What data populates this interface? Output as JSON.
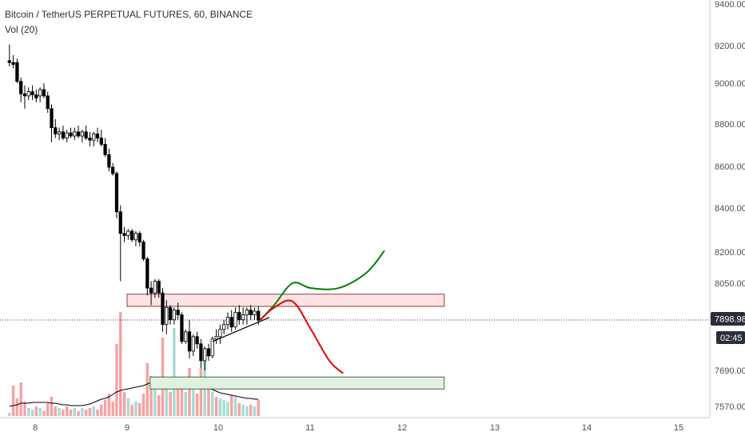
{
  "header": {
    "title": "Bitcoin / TetherUS PERPETUAL FUTURES, 60, BINANCE",
    "indicator": "Vol (20)"
  },
  "price_axis": {
    "ticks": [
      "9400.00",
      "9200.00",
      "9000.00",
      "8800.00",
      "8600.00",
      "8400.00",
      "8200.00",
      "8050.00",
      "7898.98",
      "7690.00",
      "7570.00"
    ],
    "tick_values": [
      9400,
      9200,
      9000,
      8800,
      8600,
      8400,
      8200,
      8050,
      7690,
      7570
    ],
    "current_price": "7898.98",
    "countdown": "02:45"
  },
  "time_axis": {
    "ticks": [
      "8",
      "9",
      "10",
      "11",
      "12",
      "13",
      "14",
      "15"
    ]
  },
  "colors": {
    "up": "#26a69a",
    "down": "#000000",
    "vol_up": "#a8dbd5",
    "vol_down": "#f4a3a3",
    "bullish_path": "#008000",
    "bearish_path": "#e00000",
    "resistance_zone": "#fde3e3",
    "support_zone": "#e1f1e1"
  },
  "chart_data": {
    "type": "candlestick",
    "x_unit": "day",
    "y_unit": "USDT",
    "ylim": [
      7500,
      9450
    ],
    "xlim": [
      7.72,
      15.3
    ],
    "candles": [
      [
        9120,
        9205,
        9090,
        9110
      ],
      [
        9110,
        9150,
        9080,
        9100
      ],
      [
        9110,
        9130,
        9000,
        9010
      ],
      [
        9010,
        9030,
        8910,
        8950
      ],
      [
        8950,
        8990,
        8880,
        8940
      ],
      [
        8940,
        8980,
        8920,
        8960
      ],
      [
        8960,
        8990,
        8920,
        8945
      ],
      [
        8945,
        8970,
        8910,
        8930
      ],
      [
        8940,
        8980,
        8910,
        8970
      ],
      [
        8970,
        9000,
        8930,
        8940
      ],
      [
        8940,
        8960,
        8860,
        8880
      ],
      [
        8880,
        8900,
        8720,
        8790
      ],
      [
        8790,
        8830,
        8740,
        8760
      ],
      [
        8760,
        8790,
        8730,
        8770
      ],
      [
        8770,
        8800,
        8730,
        8740
      ],
      [
        8740,
        8780,
        8720,
        8765
      ],
      [
        8765,
        8790,
        8740,
        8750
      ],
      [
        8750,
        8790,
        8730,
        8770
      ],
      [
        8770,
        8800,
        8740,
        8750
      ],
      [
        8750,
        8780,
        8720,
        8770
      ],
      [
        8770,
        8800,
        8730,
        8740
      ],
      [
        8740,
        8770,
        8700,
        8730
      ],
      [
        8730,
        8770,
        8700,
        8760
      ],
      [
        8760,
        8790,
        8720,
        8740
      ],
      [
        8740,
        8780,
        8700,
        8710
      ],
      [
        8710,
        8740,
        8650,
        8660
      ],
      [
        8660,
        8690,
        8580,
        8600
      ],
      [
        8600,
        8620,
        8560,
        8570
      ],
      [
        8570,
        8580,
        8360,
        8390
      ],
      [
        8390,
        8420,
        8060,
        8290
      ],
      [
        8290,
        8320,
        8250,
        8280
      ],
      [
        8280,
        8310,
        8260,
        8300
      ],
      [
        8300,
        8310,
        8250,
        8260
      ],
      [
        8260,
        8300,
        8230,
        8290
      ],
      [
        8290,
        8300,
        8230,
        8250
      ],
      [
        8250,
        8260,
        8160,
        8170
      ],
      [
        8170,
        8180,
        8000,
        8030
      ],
      [
        8030,
        8060,
        7960,
        8010
      ],
      [
        8010,
        8070,
        7990,
        8060
      ],
      [
        8060,
        8070,
        7990,
        8010
      ],
      [
        8010,
        8030,
        7850,
        7880
      ],
      [
        7880,
        7980,
        7840,
        7950
      ],
      [
        7950,
        7960,
        7880,
        7900
      ],
      [
        7900,
        7950,
        7880,
        7940
      ],
      [
        7940,
        7970,
        7900,
        7920
      ],
      [
        7920,
        7930,
        7800,
        7810
      ],
      [
        7810,
        7860,
        7800,
        7850
      ],
      [
        7850,
        7900,
        7740,
        7770
      ],
      [
        7770,
        7840,
        7750,
        7830
      ],
      [
        7830,
        7850,
        7780,
        7800
      ],
      [
        7800,
        7820,
        7700,
        7730
      ],
      [
        7730,
        7790,
        7690,
        7780
      ],
      [
        7780,
        7800,
        7730,
        7750
      ],
      [
        7750,
        7830,
        7740,
        7820
      ],
      [
        7820,
        7860,
        7800,
        7830
      ],
      [
        7830,
        7880,
        7800,
        7860
      ],
      [
        7860,
        7900,
        7840,
        7880
      ],
      [
        7880,
        7930,
        7860,
        7910
      ],
      [
        7910,
        7940,
        7850,
        7870
      ],
      [
        7870,
        7950,
        7860,
        7930
      ],
      [
        7930,
        7960,
        7880,
        7900
      ],
      [
        7900,
        7950,
        7880,
        7920
      ],
      [
        7920,
        7950,
        7880,
        7940
      ],
      [
        7940,
        7960,
        7900,
        7920
      ],
      [
        7920,
        7950,
        7900,
        7935
      ],
      [
        7935,
        7955,
        7880,
        7898
      ]
    ],
    "volume": [
      {
        "v": 4,
        "up": true
      },
      {
        "v": 38,
        "up": false
      },
      {
        "v": 22,
        "up": false
      },
      {
        "v": 42,
        "up": false
      },
      {
        "v": 18,
        "up": false
      },
      {
        "v": 10,
        "up": true
      },
      {
        "v": 8,
        "up": true
      },
      {
        "v": 12,
        "up": false
      },
      {
        "v": 10,
        "up": true
      },
      {
        "v": 6,
        "up": false
      },
      {
        "v": 16,
        "up": false
      },
      {
        "v": 24,
        "up": false
      },
      {
        "v": 12,
        "up": false
      },
      {
        "v": 10,
        "up": true
      },
      {
        "v": 8,
        "up": false
      },
      {
        "v": 12,
        "up": false
      },
      {
        "v": 8,
        "up": false
      },
      {
        "v": 10,
        "up": true
      },
      {
        "v": 6,
        "up": false
      },
      {
        "v": 10,
        "up": true
      },
      {
        "v": 8,
        "up": false
      },
      {
        "v": 10,
        "up": false
      },
      {
        "v": 12,
        "up": true
      },
      {
        "v": 8,
        "up": false
      },
      {
        "v": 14,
        "up": false
      },
      {
        "v": 20,
        "up": false
      },
      {
        "v": 28,
        "up": false
      },
      {
        "v": 18,
        "up": false
      },
      {
        "v": 90,
        "up": false
      },
      {
        "v": 130,
        "up": false
      },
      {
        "v": 30,
        "up": false
      },
      {
        "v": 22,
        "up": true
      },
      {
        "v": 14,
        "up": false
      },
      {
        "v": 18,
        "up": true
      },
      {
        "v": 16,
        "up": false
      },
      {
        "v": 28,
        "up": false
      },
      {
        "v": 66,
        "up": false
      },
      {
        "v": 50,
        "up": false
      },
      {
        "v": 36,
        "up": true
      },
      {
        "v": 26,
        "up": false
      },
      {
        "v": 98,
        "up": false
      },
      {
        "v": 40,
        "up": true
      },
      {
        "v": 30,
        "up": false
      },
      {
        "v": 110,
        "up": true
      },
      {
        "v": 40,
        "up": false
      },
      {
        "v": 44,
        "up": false
      },
      {
        "v": 30,
        "up": true
      },
      {
        "v": 60,
        "up": false
      },
      {
        "v": 34,
        "up": true
      },
      {
        "v": 28,
        "up": false
      },
      {
        "v": 60,
        "up": false
      },
      {
        "v": 80,
        "up": true
      },
      {
        "v": 36,
        "up": false
      },
      {
        "v": 30,
        "up": true
      },
      {
        "v": 24,
        "up": false
      },
      {
        "v": 22,
        "up": true
      },
      {
        "v": 20,
        "up": true
      },
      {
        "v": 18,
        "up": true
      },
      {
        "v": 26,
        "up": false
      },
      {
        "v": 24,
        "up": true
      },
      {
        "v": 16,
        "up": false
      },
      {
        "v": 14,
        "up": true
      },
      {
        "v": 12,
        "up": true
      },
      {
        "v": 14,
        "up": false
      },
      {
        "v": 12,
        "up": true
      },
      {
        "v": 20,
        "up": false
      }
    ],
    "volume_ma": [
      12,
      13,
      14,
      16,
      16,
      16,
      17,
      17,
      17,
      17,
      17,
      16,
      16,
      15,
      14,
      14,
      13,
      13,
      13,
      13,
      14,
      15,
      17,
      19,
      21,
      22,
      24,
      27,
      30,
      32,
      33,
      34,
      35,
      36,
      37,
      38,
      40,
      42,
      43,
      44,
      46,
      46,
      45,
      45,
      44,
      44,
      43,
      42,
      41,
      40,
      38,
      36,
      35,
      33,
      31,
      29,
      28,
      27,
      26,
      25,
      24,
      23,
      22,
      22,
      21,
      21
    ],
    "zones": [
      {
        "name": "resistance",
        "x1": 9.0,
        "x2": 12.45,
        "y1": 7955,
        "y2": 8005
      },
      {
        "name": "support",
        "x1": 9.25,
        "x2": 12.45,
        "y1": 7628,
        "y2": 7668
      }
    ],
    "trendline": [
      [
        9.93,
        7810
      ],
      [
        10.55,
        7910
      ]
    ],
    "bullish_path": [
      [
        10.45,
        7900
      ],
      [
        10.6,
        7960
      ],
      [
        10.8,
        8050
      ],
      [
        11.0,
        8030
      ],
      [
        11.3,
        8030
      ],
      [
        11.6,
        8100
      ],
      [
        11.8,
        8210
      ]
    ],
    "bearish_path": [
      [
        10.45,
        7900
      ],
      [
        10.6,
        7950
      ],
      [
        10.8,
        7975
      ],
      [
        11.0,
        7860
      ],
      [
        11.2,
        7730
      ],
      [
        11.35,
        7680
      ]
    ]
  }
}
